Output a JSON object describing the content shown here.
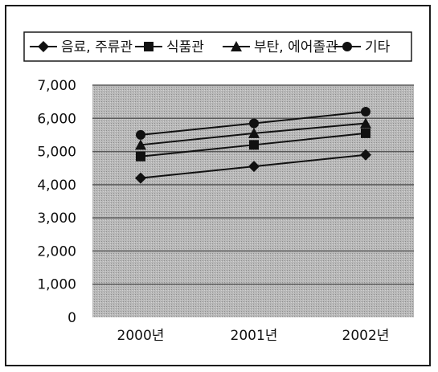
{
  "chart_data": {
    "type": "line",
    "categories": [
      "2000년",
      "2001년",
      "2002년"
    ],
    "series": [
      {
        "name": "음료, 주류관",
        "marker": "diamond",
        "values": [
          4200,
          4550,
          4900
        ]
      },
      {
        "name": "식품관",
        "marker": "square",
        "values": [
          4850,
          5200,
          5550
        ]
      },
      {
        "name": "부탄, 에어졸관",
        "marker": "triangle",
        "values": [
          5200,
          5550,
          5850
        ]
      },
      {
        "name": "기타",
        "marker": "circle",
        "values": [
          5500,
          5850,
          6200
        ]
      }
    ],
    "y_ticks": [
      "0",
      "1,000",
      "2,000",
      "3,000",
      "4,000",
      "5,000",
      "6,000",
      "7,000"
    ],
    "ylim": [
      0,
      7000
    ],
    "grid": true,
    "legend_position": "top",
    "colors": {
      "line": "#111111",
      "plot_background": "#b4b4b4",
      "gridline": "#5a5a5a"
    }
  }
}
